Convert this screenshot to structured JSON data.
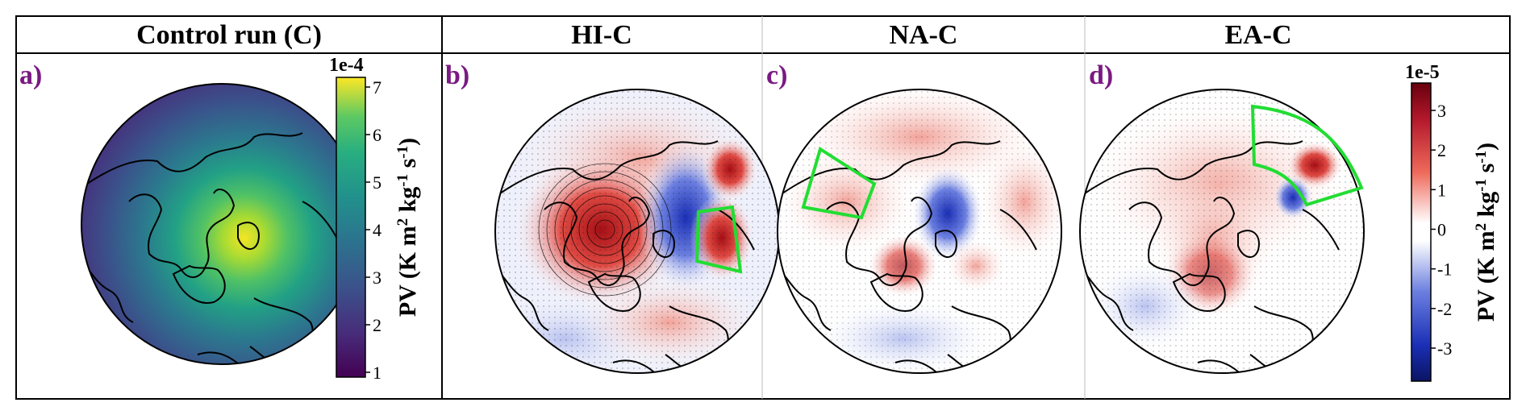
{
  "columns": [
    {
      "header": "Control run (C)"
    },
    {
      "header": "HI-C"
    },
    {
      "header": "NA-C"
    },
    {
      "header": "EA-C"
    }
  ],
  "panels": [
    {
      "label": "a)",
      "colorscale": "viridis"
    },
    {
      "label": "b)",
      "colorscale": "diverging-blue-white-red"
    },
    {
      "label": "c)",
      "colorscale": "diverging-blue-white-red"
    },
    {
      "label": "d)",
      "colorscale": "diverging-blue-white-red"
    }
  ],
  "colorbar_left": {
    "exponent": "1e-4",
    "ticks": [
      "1",
      "2",
      "3",
      "4",
      "5",
      "6",
      "7"
    ],
    "label": "PV (K m",
    "label_parts": {
      "base": "PV (K m",
      "sup1": "2",
      "mid": " kg",
      "sup2": "-1",
      "mid2": " s",
      "sup3": "-1",
      "end": ")"
    }
  },
  "colorbar_right": {
    "exponent": "1e-5",
    "ticks": [
      "3",
      "2",
      "1",
      "0",
      "-1",
      "-2",
      "-3"
    ],
    "label_parts": {
      "base": "PV (K m",
      "sup1": "2",
      "mid": " kg",
      "sup2": "-1",
      "mid2": " s",
      "sup3": "-1",
      "end": ")"
    }
  },
  "colors": {
    "highlight_box": "#22dd33",
    "panel_label": "#7a1a82",
    "positive": "#c0181c",
    "negative": "#1a2fb5"
  }
}
